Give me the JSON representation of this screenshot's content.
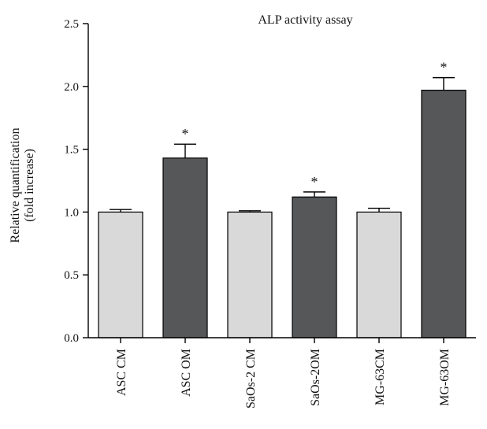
{
  "chart_data": {
    "type": "bar",
    "title": "ALP activity assay",
    "ylabel_line1": "Relative quantification",
    "ylabel_line2": "(fold increase)",
    "xlabel": "",
    "ylim": [
      0,
      2.5
    ],
    "yticks": [
      "0.0",
      "0.5",
      "1.0",
      "1.5",
      "2.0",
      "2.5"
    ],
    "categories": [
      "ASC CM",
      "ASC OM",
      "SaOs-2 CM",
      "SaOs-2OM",
      "MG-63CM",
      "MG-63OM"
    ],
    "values": [
      1.0,
      1.43,
      1.0,
      1.12,
      1.0,
      1.97
    ],
    "errors": [
      0.02,
      0.11,
      0.01,
      0.04,
      0.03,
      0.1
    ],
    "significant": [
      false,
      true,
      false,
      true,
      false,
      true
    ],
    "significance_marker": "*",
    "colors": {
      "control": "#d9d9d9",
      "osteogenic": "#555759"
    },
    "bar_color_group": [
      "control",
      "osteogenic",
      "control",
      "osteogenic",
      "control",
      "osteogenic"
    ],
    "grid": false,
    "legend": "none"
  }
}
